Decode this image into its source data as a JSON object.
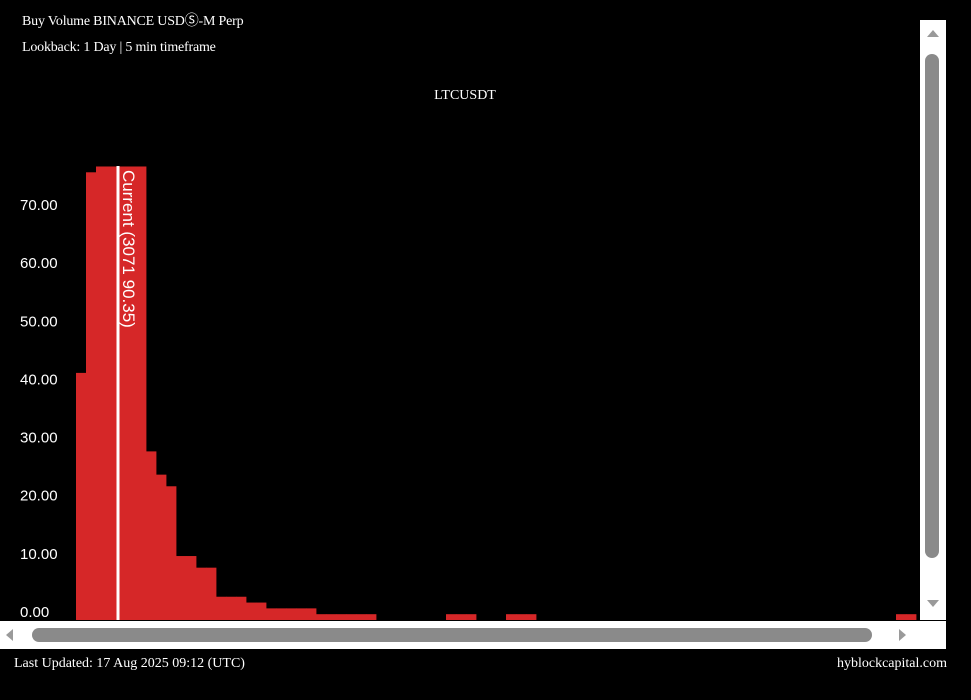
{
  "header": {
    "title": "Buy Volume BINANCE USDⓈ-M Perp",
    "subtitle": "Lookback: 1 Day | 5 min timeframe"
  },
  "footer": {
    "last_updated": "Last Updated: 17 Aug 2025 09:12 (UTC)",
    "source": "hyblockcapital.com"
  },
  "colors": {
    "bar": "#d62728",
    "background": "#000000",
    "current_line": "#ffffff",
    "scrollbar_track": "#ffffff",
    "scrollbar_thumb": "#8a8a8a"
  },
  "chart_data": {
    "type": "bar",
    "title": "LTCUSDT",
    "xlabel": "",
    "ylabel": "",
    "ylim": [
      0,
      80
    ],
    "yticks": [
      0,
      10,
      20,
      30,
      40,
      50,
      60,
      70
    ],
    "ytick_labels": [
      "0.00",
      "10.00",
      "20.00",
      "30.00",
      "40.00",
      "50.00",
      "60.00",
      "70.00"
    ],
    "grid": false,
    "legend": "none",
    "bin_count": 84,
    "values": [
      42.5,
      77,
      78,
      78,
      78,
      78,
      78,
      29,
      25,
      23,
      11,
      11,
      9,
      9,
      4,
      4,
      4,
      3,
      3,
      2,
      2,
      2,
      2,
      2,
      1,
      1,
      1,
      1,
      1,
      1,
      0,
      0,
      0,
      0,
      0,
      0,
      0,
      1,
      1,
      1,
      0,
      0,
      0,
      1,
      1,
      1,
      0,
      0,
      0,
      0,
      0,
      0,
      0,
      0,
      0,
      0,
      0,
      0,
      0,
      0,
      0,
      0,
      0,
      0,
      0,
      0,
      0,
      0,
      0,
      0,
      0,
      0,
      0,
      0,
      0,
      0,
      0,
      0,
      0,
      0,
      0,
      0,
      1,
      1
    ],
    "current_marker": {
      "label": "Current (3071 90.35)",
      "bin_index": 4.2
    }
  },
  "scrollbars": {
    "vertical": {
      "thumb_position": 0.0
    },
    "horizontal": {
      "thumb_position": 0.0
    }
  }
}
